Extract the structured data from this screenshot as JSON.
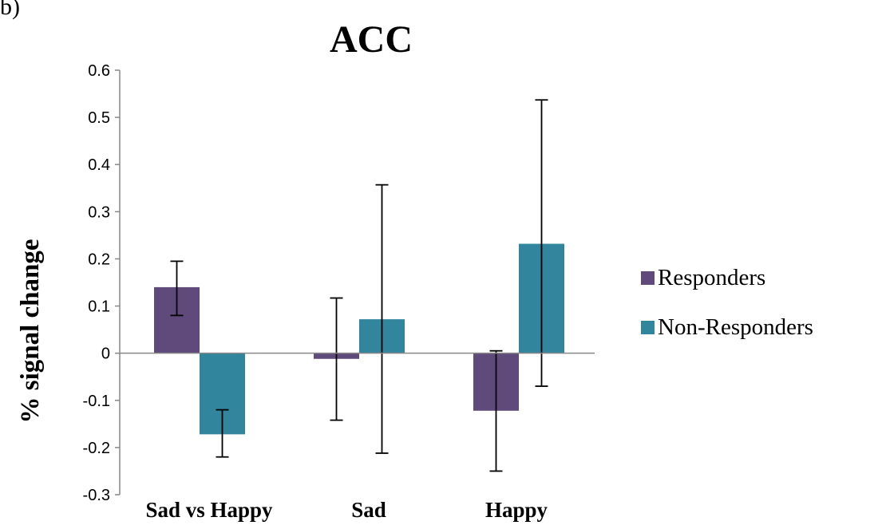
{
  "chart_data": {
    "type": "bar",
    "panel_label": "b)",
    "title": "ACC",
    "xlabel": "",
    "ylabel": "% signal change",
    "categories": [
      "Sad vs Happy",
      "Sad",
      "Happy"
    ],
    "ylim": [
      -0.3,
      0.6
    ],
    "yticks": [
      "0.6",
      "0.5",
      "0.4",
      "0.3",
      "0.2",
      "0.1",
      "0",
      "-0.1",
      "-0.2",
      "-0.3"
    ],
    "ytick_values": [
      0.6,
      0.5,
      0.4,
      0.3,
      0.2,
      0.1,
      0,
      -0.1,
      -0.2,
      -0.3
    ],
    "series": [
      {
        "name": "Responders",
        "color": "#604a7b",
        "values": [
          0.14,
          -0.012,
          -0.122
        ],
        "error_low": [
          0.08,
          -0.142,
          -0.25
        ],
        "error_high": [
          0.195,
          0.117,
          0.005
        ]
      },
      {
        "name": "Non-Responders",
        "color": "#31859c",
        "values": [
          -0.172,
          0.072,
          0.232
        ],
        "error_low": [
          -0.22,
          -0.212,
          -0.07
        ],
        "error_high": [
          -0.12,
          0.357,
          0.537
        ]
      }
    ],
    "legend_position": "right",
    "grid": false
  }
}
